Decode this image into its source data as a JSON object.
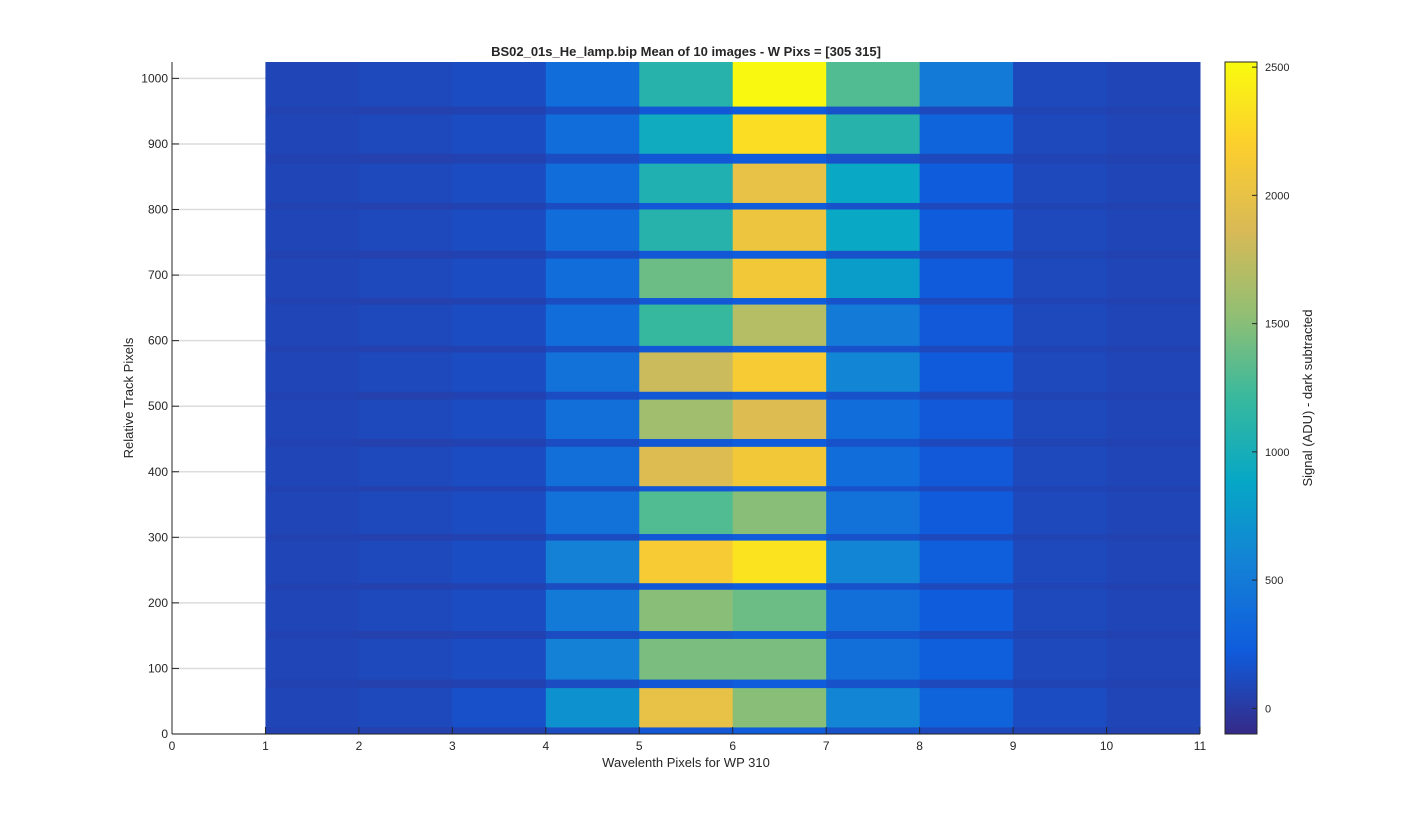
{
  "chart_data": {
    "type": "heatmap",
    "title": "BS02_01s_He_lamp.bip  Mean of 10 images - W Pixs = [305  315]",
    "xlabel": "Wavelenth Pixels for WP 310",
    "ylabel": "Relative Track Pixels",
    "colorbar_label": "Signal (ADU) - dark subtracted",
    "colormap": "parula",
    "xlim": [
      0,
      11
    ],
    "ylim": [
      0,
      1025
    ],
    "clim": [
      -100,
      2520
    ],
    "x_ticks": [
      "0",
      "1",
      "2",
      "3",
      "4",
      "5",
      "6",
      "7",
      "8",
      "9",
      "10",
      "11"
    ],
    "y_ticks": [
      "0",
      "100",
      "200",
      "300",
      "400",
      "500",
      "600",
      "700",
      "800",
      "900",
      "1000"
    ],
    "colorbar_ticks": [
      "0",
      "500",
      "1000",
      "1500",
      "2000",
      "2500"
    ],
    "colorbar_tick_values": [
      0,
      500,
      1000,
      1500,
      2000,
      2500
    ],
    "grid": "y-major",
    "column_centers": [
      1.5,
      2.5,
      3.5,
      4.5,
      5.5,
      6.5,
      7.5,
      8.5,
      9.5,
      10.5
    ],
    "background_signal": [
      60,
      50,
      60,
      120,
      200,
      240,
      160,
      100,
      70,
      60
    ],
    "bands": [
      {
        "y_range": [
          10,
          70
        ],
        "signal": [
          80,
          100,
          150,
          700,
          2000,
          1500,
          600,
          300,
          120,
          80
        ]
      },
      {
        "y_range": [
          83,
          145
        ],
        "signal": [
          80,
          100,
          120,
          550,
          1450,
          1450,
          400,
          250,
          100,
          80
        ]
      },
      {
        "y_range": [
          157,
          220
        ],
        "signal": [
          80,
          100,
          120,
          500,
          1500,
          1400,
          400,
          240,
          100,
          80
        ]
      },
      {
        "y_range": [
          230,
          295
        ],
        "signal": [
          80,
          100,
          130,
          550,
          2150,
          2350,
          600,
          250,
          100,
          80
        ]
      },
      {
        "y_range": [
          305,
          370
        ],
        "signal": [
          80,
          100,
          120,
          420,
          1300,
          1500,
          420,
          220,
          100,
          80
        ]
      },
      {
        "y_range": [
          378,
          438
        ],
        "signal": [
          80,
          100,
          120,
          400,
          1900,
          2100,
          380,
          210,
          100,
          80
        ]
      },
      {
        "y_range": [
          450,
          510
        ],
        "signal": [
          80,
          100,
          120,
          400,
          1600,
          1900,
          380,
          210,
          100,
          80
        ]
      },
      {
        "y_range": [
          522,
          582
        ],
        "signal": [
          80,
          100,
          120,
          420,
          1800,
          2150,
          600,
          220,
          100,
          80
        ]
      },
      {
        "y_range": [
          592,
          655
        ],
        "signal": [
          80,
          100,
          120,
          380,
          1200,
          1700,
          500,
          210,
          100,
          80
        ]
      },
      {
        "y_range": [
          665,
          725
        ],
        "signal": [
          80,
          100,
          120,
          380,
          1400,
          2100,
          800,
          220,
          100,
          80
        ]
      },
      {
        "y_range": [
          737,
          800
        ],
        "signal": [
          80,
          100,
          120,
          380,
          1100,
          2050,
          900,
          230,
          100,
          80
        ]
      },
      {
        "y_range": [
          810,
          870
        ],
        "signal": [
          80,
          100,
          120,
          380,
          1050,
          2000,
          900,
          230,
          100,
          80
        ]
      },
      {
        "y_range": [
          885,
          945
        ],
        "signal": [
          80,
          100,
          120,
          380,
          950,
          2300,
          1100,
          300,
          100,
          80
        ]
      },
      {
        "y_range": [
          957,
          1025
        ],
        "signal": [
          80,
          100,
          120,
          380,
          1100,
          2500,
          1300,
          500,
          100,
          80
        ]
      }
    ]
  }
}
